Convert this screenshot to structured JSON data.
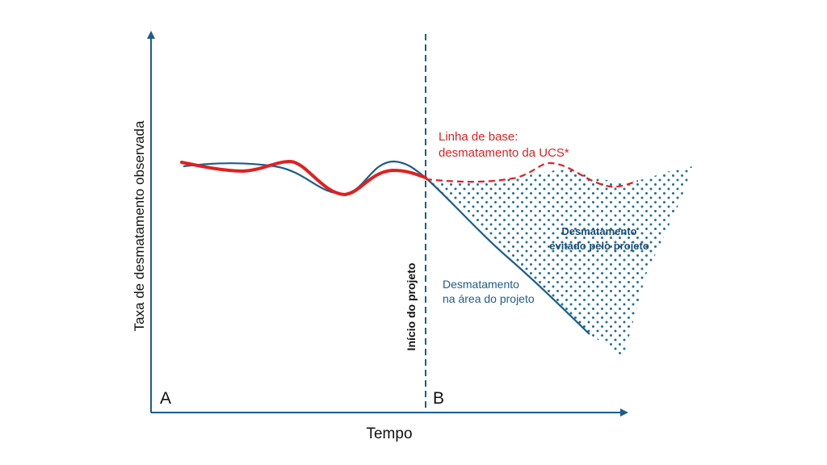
{
  "axes": {
    "y_label": "Taxa de desmatamento observada",
    "x_label": "Tempo"
  },
  "points": {
    "a": "A",
    "b": "B"
  },
  "marker": {
    "label": "Início do projeto"
  },
  "baseline": {
    "line1": "Linha de base:",
    "line2": "desmatamento da UCS*",
    "color": "#e02020"
  },
  "project": {
    "line1": "Desmatamento",
    "line2": "na área do projeto",
    "color": "#1c5d8c"
  },
  "avoided": {
    "line1": "Desmatamento",
    "line2": "evitado pelo projeto",
    "color": "#1a4e7a"
  }
}
